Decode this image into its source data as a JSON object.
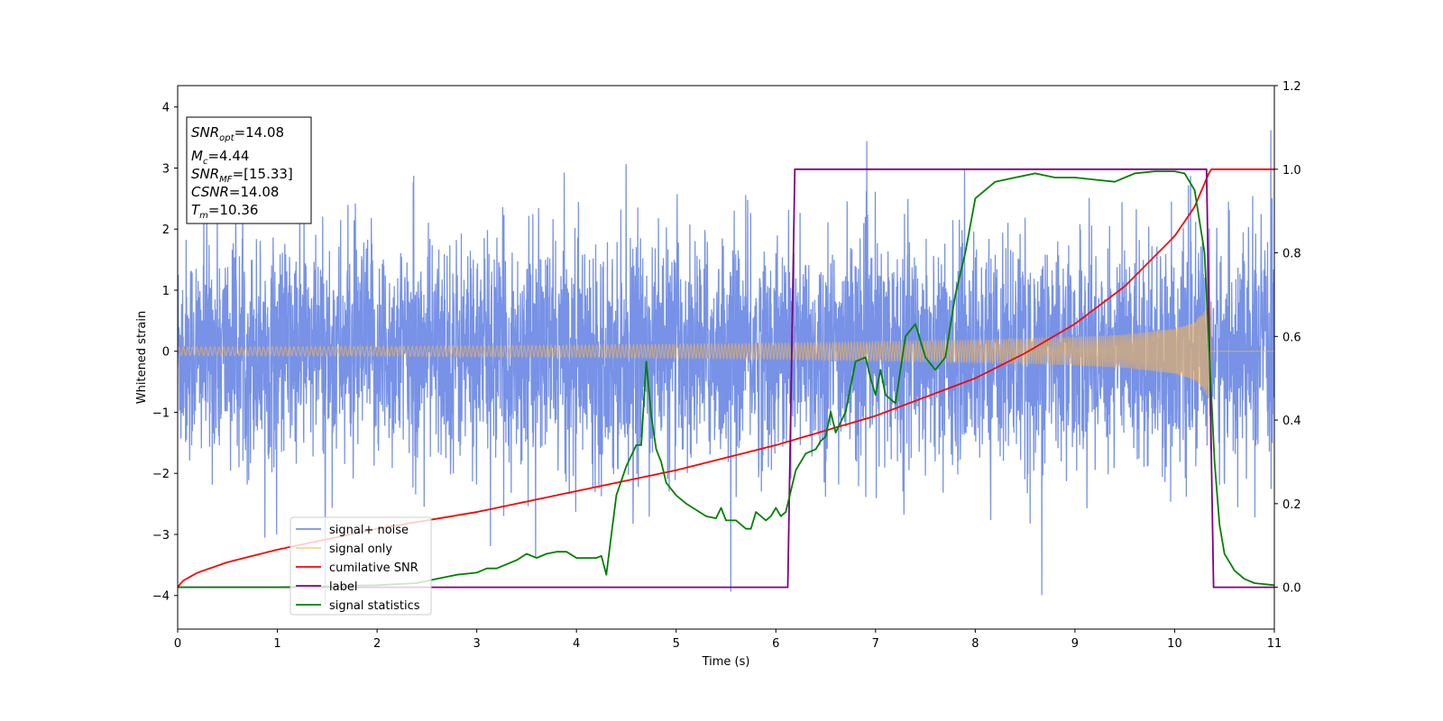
{
  "chart_data": {
    "type": "line",
    "xlabel": "Time (s)",
    "ylabel": "Whitened strain",
    "xlim": [
      0,
      11
    ],
    "ylim": [
      -4.55,
      4.35
    ],
    "y2lim": [
      -0.1,
      1.2
    ],
    "xticks": [
      "0",
      "1",
      "2",
      "3",
      "4",
      "5",
      "6",
      "7",
      "8",
      "9",
      "10",
      "11"
    ],
    "yticks": [
      "4",
      "3",
      "2",
      "1",
      "0",
      "−1",
      "−2",
      "−3",
      "−4"
    ],
    "y2ticks": [
      "1.2",
      "1.0",
      "0.8",
      "0.6",
      "0.4",
      "0.2",
      "0.0"
    ],
    "legend_position": "lower-left",
    "colors": {
      "noise": "#5577e0",
      "signal": "#f5b556",
      "cumulative_snr": "#ff0000",
      "label": "#800080",
      "statistics": "#008000"
    },
    "stats_box": {
      "snr_opt": {
        "base": "SNR",
        "sub": "opt",
        "val": "=14.08"
      },
      "mc": {
        "base": "M",
        "sub": "c",
        "val": "=4.44"
      },
      "snr_mf": {
        "base": "SNR",
        "sub": "MF",
        "val": "=[15.33]"
      },
      "csnr": {
        "base": "CSNR",
        "val": "=14.08"
      },
      "tm": {
        "base": "T",
        "sub": "m",
        "val": "=10.36"
      }
    },
    "series": [
      {
        "name": "signal+ noise",
        "axis": "left",
        "noise_amplitude": 1.2,
        "peak_range": [
          -4.15,
          3.62
        ]
      },
      {
        "name": "signal only",
        "axis": "left",
        "merger_time": 10.36,
        "envelope": {
          "x": [
            0,
            2,
            4,
            6,
            8,
            9,
            9.5,
            10,
            10.2,
            10.36,
            10.37,
            11
          ],
          "y": [
            0.07,
            0.08,
            0.1,
            0.13,
            0.18,
            0.23,
            0.27,
            0.37,
            0.47,
            0.8,
            0,
            0
          ]
        }
      },
      {
        "name": "cumilative SNR",
        "axis": "right",
        "x": [
          0,
          0.05,
          0.2,
          0.5,
          1,
          2,
          3,
          4,
          5,
          6,
          7,
          8,
          8.5,
          9,
          9.5,
          10,
          10.2,
          10.36,
          10.4,
          11
        ],
        "y": [
          0.0,
          0.015,
          0.035,
          0.06,
          0.09,
          0.14,
          0.18,
          0.23,
          0.28,
          0.34,
          0.41,
          0.5,
          0.56,
          0.63,
          0.72,
          0.84,
          0.91,
          1.0,
          1.0,
          1.0
        ]
      },
      {
        "name": "label",
        "axis": "right",
        "x": [
          0,
          6.12,
          6.19,
          10.32,
          10.39,
          11
        ],
        "y": [
          0,
          0,
          1,
          1,
          0,
          0
        ]
      },
      {
        "name": "signal statistics",
        "axis": "right",
        "x": [
          0,
          1.0,
          2.0,
          2.4,
          2.6,
          2.8,
          3.0,
          3.1,
          3.2,
          3.3,
          3.4,
          3.5,
          3.6,
          3.7,
          3.8,
          3.9,
          4.0,
          4.1,
          4.2,
          4.25,
          4.3,
          4.4,
          4.5,
          4.6,
          4.65,
          4.7,
          4.75,
          4.8,
          4.85,
          4.9,
          5.0,
          5.1,
          5.2,
          5.3,
          5.4,
          5.45,
          5.5,
          5.6,
          5.7,
          5.75,
          5.8,
          5.9,
          5.95,
          6.0,
          6.05,
          6.1,
          6.2,
          6.3,
          6.4,
          6.45,
          6.5,
          6.55,
          6.6,
          6.7,
          6.8,
          6.9,
          6.95,
          7.0,
          7.05,
          7.1,
          7.15,
          7.2,
          7.3,
          7.4,
          7.5,
          7.6,
          7.7,
          7.8,
          7.9,
          8.0,
          8.2,
          8.4,
          8.6,
          8.8,
          9.0,
          9.2,
          9.4,
          9.5,
          9.6,
          9.8,
          10.0,
          10.1,
          10.2,
          10.3,
          10.35,
          10.4,
          10.45,
          10.5,
          10.55,
          10.6,
          10.7,
          10.8,
          11.0
        ],
        "y": [
          0.0,
          0.0,
          0.005,
          0.01,
          0.02,
          0.03,
          0.035,
          0.045,
          0.045,
          0.055,
          0.065,
          0.08,
          0.07,
          0.08,
          0.085,
          0.085,
          0.07,
          0.07,
          0.07,
          0.075,
          0.03,
          0.22,
          0.29,
          0.34,
          0.34,
          0.54,
          0.41,
          0.33,
          0.3,
          0.25,
          0.22,
          0.2,
          0.185,
          0.17,
          0.165,
          0.19,
          0.16,
          0.16,
          0.14,
          0.14,
          0.18,
          0.16,
          0.17,
          0.19,
          0.17,
          0.18,
          0.28,
          0.32,
          0.33,
          0.35,
          0.36,
          0.42,
          0.37,
          0.42,
          0.54,
          0.55,
          0.5,
          0.46,
          0.52,
          0.46,
          0.45,
          0.44,
          0.6,
          0.63,
          0.55,
          0.52,
          0.55,
          0.7,
          0.8,
          0.93,
          0.97,
          0.98,
          0.99,
          0.98,
          0.98,
          0.975,
          0.97,
          0.98,
          0.99,
          0.995,
          0.995,
          0.99,
          0.95,
          0.8,
          0.55,
          0.3,
          0.15,
          0.08,
          0.06,
          0.04,
          0.02,
          0.01,
          0.005
        ]
      }
    ]
  }
}
